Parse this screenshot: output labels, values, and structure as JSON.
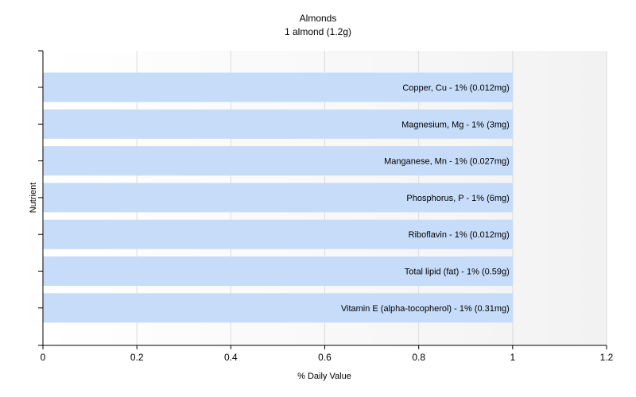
{
  "chart_data": {
    "type": "bar",
    "orientation": "horizontal",
    "title": "Almonds",
    "subtitle": "1 almond (1.2g)",
    "xlabel": "% Daily Value",
    "ylabel": "Nutrient",
    "xlim": [
      0,
      1.2
    ],
    "xticks": [
      "0",
      "0.2",
      "0.4",
      "0.6",
      "0.8",
      "1",
      "1.2"
    ],
    "grid": true,
    "bar_color": "#c6dcf9",
    "bars": [
      {
        "label": "Copper, Cu - 1% (0.012mg)",
        "value": 1
      },
      {
        "label": "Magnesium, Mg - 1% (3mg)",
        "value": 1
      },
      {
        "label": "Manganese, Mn - 1% (0.027mg)",
        "value": 1
      },
      {
        "label": "Phosphorus, P - 1% (6mg)",
        "value": 1
      },
      {
        "label": "Riboflavin - 1% (0.012mg)",
        "value": 1
      },
      {
        "label": "Total lipid (fat) - 1% (0.59g)",
        "value": 1
      },
      {
        "label": "Vitamin E (alpha-tocopherol) - 1% (0.31mg)",
        "value": 1
      }
    ]
  }
}
